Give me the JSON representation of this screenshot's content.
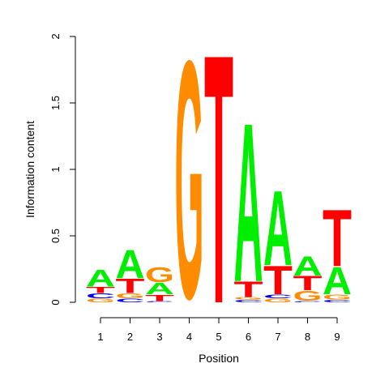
{
  "chart_data": {
    "type": "sequence-logo",
    "xlabel": "Position",
    "ylabel": "Information content",
    "ylim": [
      0,
      2
    ],
    "y_ticks": [
      0,
      0.5,
      1,
      1.5,
      2
    ],
    "y_tick_labels": [
      "0",
      "0.5",
      "1",
      "1.5",
      "2"
    ],
    "x_tick_labels": [
      "1",
      "2",
      "3",
      "4",
      "5",
      "6",
      "7",
      "8",
      "9"
    ],
    "letter_colors": {
      "A": "#00ee00",
      "C": "#0000ee",
      "G": "#ff8c00",
      "T": "#ff0000"
    },
    "positions": [
      {
        "position": "1",
        "letters": [
          {
            "base": "G",
            "height": 0.03
          },
          {
            "base": "C",
            "height": 0.04
          },
          {
            "base": "T",
            "height": 0.05
          },
          {
            "base": "A",
            "height": 0.13
          }
        ]
      },
      {
        "position": "2",
        "letters": [
          {
            "base": "C",
            "height": 0.03
          },
          {
            "base": "G",
            "height": 0.04
          },
          {
            "base": "T",
            "height": 0.11
          },
          {
            "base": "A",
            "height": 0.22
          }
        ]
      },
      {
        "position": "3",
        "letters": [
          {
            "base": "C",
            "height": 0.01
          },
          {
            "base": "T",
            "height": 0.05
          },
          {
            "base": "A",
            "height": 0.09
          },
          {
            "base": "G",
            "height": 0.12
          }
        ]
      },
      {
        "position": "4",
        "letters": [
          {
            "base": "G",
            "height": 1.93
          }
        ]
      },
      {
        "position": "5",
        "letters": [
          {
            "base": "T",
            "height": 1.93
          }
        ]
      },
      {
        "position": "6",
        "letters": [
          {
            "base": "C",
            "height": 0.02
          },
          {
            "base": "G",
            "height": 0.02
          },
          {
            "base": "T",
            "height": 0.12
          },
          {
            "base": "A",
            "height": 1.23
          }
        ]
      },
      {
        "position": "7",
        "letters": [
          {
            "base": "G",
            "height": 0.03
          },
          {
            "base": "C",
            "height": 0.03
          },
          {
            "base": "T",
            "height": 0.22
          },
          {
            "base": "A",
            "height": 0.58
          }
        ]
      },
      {
        "position": "8",
        "letters": [
          {
            "base": "C",
            "height": 0.01
          },
          {
            "base": "G",
            "height": 0.08
          },
          {
            "base": "T",
            "height": 0.11
          },
          {
            "base": "A",
            "height": 0.15
          }
        ]
      },
      {
        "position": "9",
        "letters": [
          {
            "base": "C",
            "height": 0.02
          },
          {
            "base": "G",
            "height": 0.04
          },
          {
            "base": "A",
            "height": 0.21
          },
          {
            "base": "T",
            "height": 0.44
          }
        ]
      }
    ]
  }
}
